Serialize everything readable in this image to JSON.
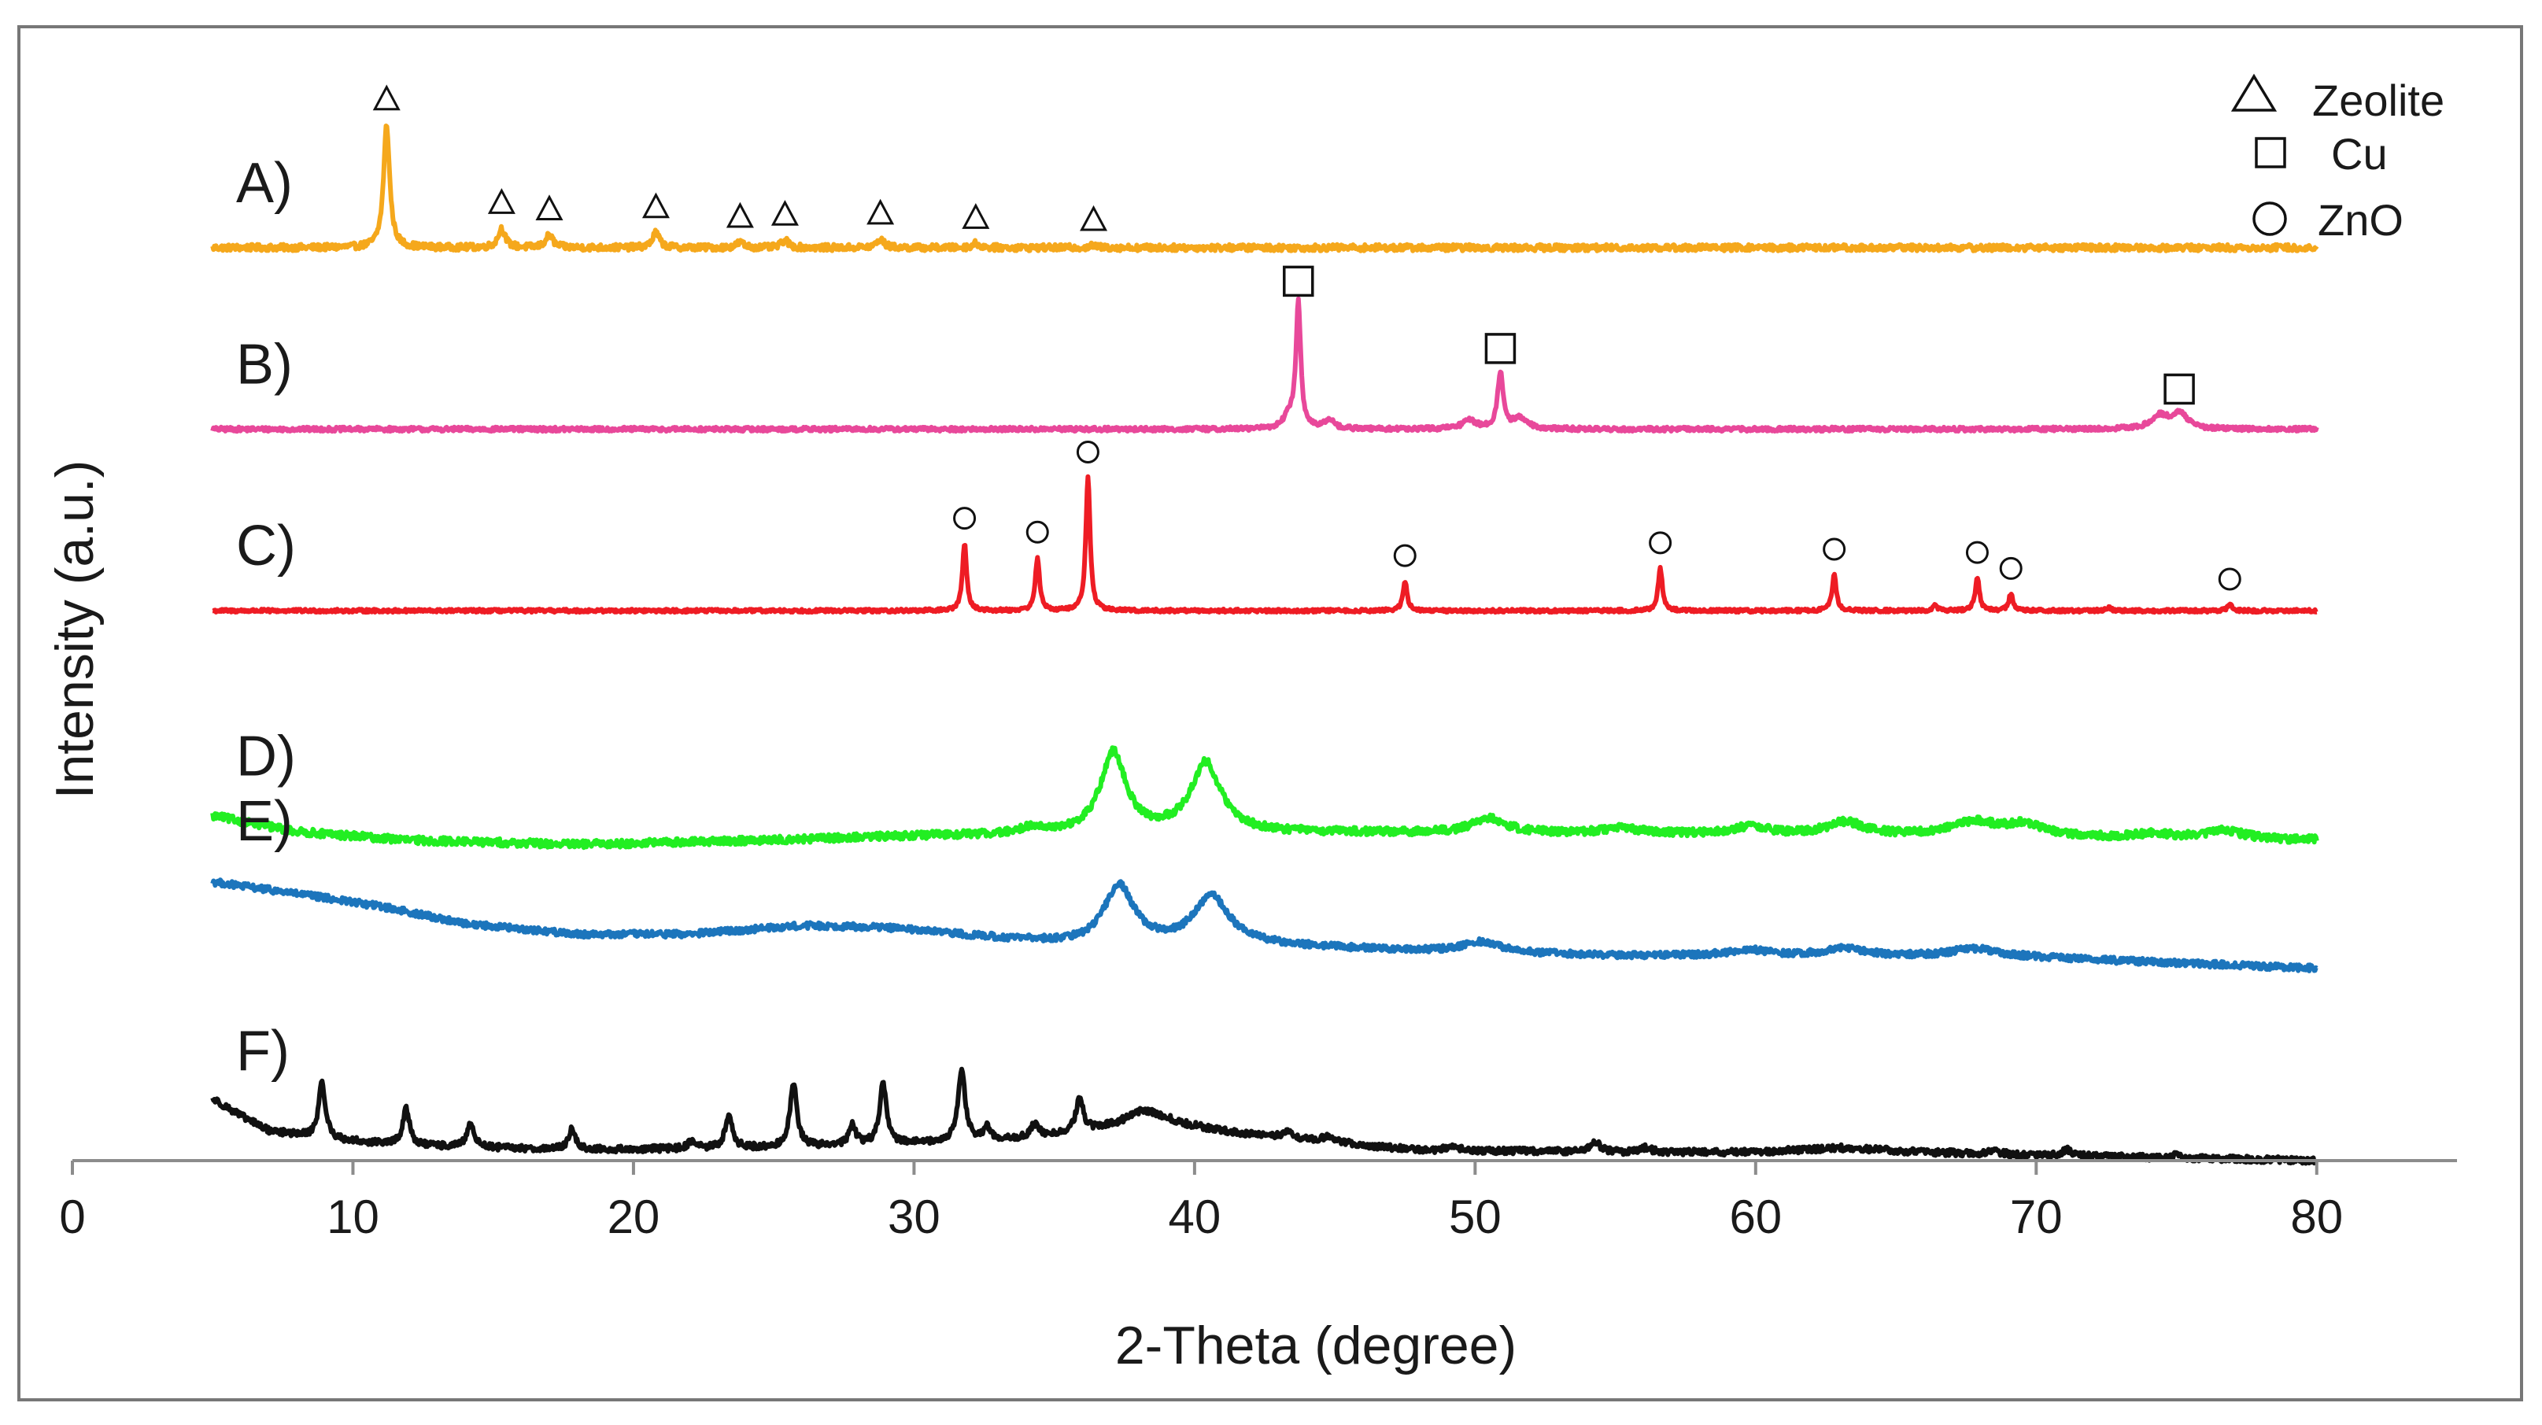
{
  "chart_data": {
    "type": "line",
    "title": "",
    "xlabel": "2-Theta (degree)",
    "ylabel": "Intensity (a.u.)",
    "xlim": [
      0,
      85
    ],
    "xticks": [
      0,
      10,
      20,
      30,
      40,
      50,
      60,
      70,
      80
    ],
    "xtick_labels": [
      "0",
      "10",
      "20",
      "30",
      "40",
      "50",
      "60",
      "70",
      "80"
    ],
    "yticks": "none (arbitrary units)",
    "grid": false,
    "x_range_measured": [
      5,
      80
    ],
    "legend": [
      {
        "marker": "triangle",
        "label": "Zeolite"
      },
      {
        "marker": "square",
        "label": "Cu"
      },
      {
        "marker": "circle",
        "label": "ZnO"
      }
    ],
    "legend_position": "top-right",
    "series": [
      {
        "name": "A)",
        "color": "#F5A81C",
        "offset": 0.855,
        "noise": 0.003,
        "background": [],
        "peaks": [
          {
            "x": 11.2,
            "h": 0.115,
            "w": 0.13,
            "marker": "triangle"
          },
          {
            "x": 15.3,
            "h": 0.018,
            "w": 0.15,
            "marker": "triangle"
          },
          {
            "x": 17.0,
            "h": 0.012,
            "w": 0.15,
            "marker": "triangle"
          },
          {
            "x": 20.8,
            "h": 0.014,
            "w": 0.15,
            "marker": "triangle"
          },
          {
            "x": 23.8,
            "h": 0.005,
            "w": 0.15,
            "marker": "triangle"
          },
          {
            "x": 25.4,
            "h": 0.007,
            "w": 0.15,
            "marker": "triangle"
          },
          {
            "x": 28.8,
            "h": 0.008,
            "w": 0.15,
            "marker": "triangle"
          },
          {
            "x": 32.2,
            "h": 0.004,
            "w": 0.15,
            "marker": "triangle"
          },
          {
            "x": 36.4,
            "h": 0.002,
            "w": 0.15,
            "marker": "triangle"
          }
        ]
      },
      {
        "name": "B)",
        "color": "#E8489A",
        "offset": 0.685,
        "noise": 0.002,
        "background": [],
        "peaks": [
          {
            "x": 43.4,
            "h": 0.012,
            "w": 0.25
          },
          {
            "x": 43.7,
            "h": 0.115,
            "w": 0.1,
            "marker": "square"
          },
          {
            "x": 44.8,
            "h": 0.009,
            "w": 0.2
          },
          {
            "x": 49.8,
            "h": 0.008,
            "w": 0.3
          },
          {
            "x": 50.9,
            "h": 0.052,
            "w": 0.12,
            "marker": "square"
          },
          {
            "x": 51.6,
            "h": 0.01,
            "w": 0.3
          },
          {
            "x": 74.4,
            "h": 0.012,
            "w": 0.35
          },
          {
            "x": 75.1,
            "h": 0.014,
            "w": 0.35,
            "marker": "square"
          }
        ]
      },
      {
        "name": "C)",
        "color": "#EE1C24",
        "offset": 0.515,
        "noise": 0.0015,
        "background": [],
        "peaks": [
          {
            "x": 31.8,
            "h": 0.063,
            "w": 0.09,
            "marker": "circle"
          },
          {
            "x": 34.4,
            "h": 0.05,
            "w": 0.09,
            "marker": "circle"
          },
          {
            "x": 36.2,
            "h": 0.125,
            "w": 0.09,
            "marker": "circle"
          },
          {
            "x": 47.5,
            "h": 0.028,
            "w": 0.09,
            "marker": "circle"
          },
          {
            "x": 56.6,
            "h": 0.04,
            "w": 0.09,
            "marker": "circle"
          },
          {
            "x": 62.8,
            "h": 0.034,
            "w": 0.09,
            "marker": "circle"
          },
          {
            "x": 66.4,
            "h": 0.005,
            "w": 0.09
          },
          {
            "x": 67.9,
            "h": 0.031,
            "w": 0.09,
            "marker": "circle"
          },
          {
            "x": 69.1,
            "h": 0.016,
            "w": 0.09,
            "marker": "circle"
          },
          {
            "x": 72.6,
            "h": 0.003,
            "w": 0.09
          },
          {
            "x": 76.9,
            "h": 0.006,
            "w": 0.09,
            "marker": "circle"
          }
        ]
      },
      {
        "name": "D)",
        "color": "#22EE22",
        "offset": 0.3,
        "noise": 0.0035,
        "background": [
          [
            5,
            0.023
          ],
          [
            8,
            0.008
          ],
          [
            12,
            0.0
          ],
          [
            18,
            -0.004
          ],
          [
            25,
            0.0
          ],
          [
            30,
            0.004
          ],
          [
            36,
            0.006
          ],
          [
            45,
            0.007
          ],
          [
            55,
            0.006
          ],
          [
            65,
            0.004
          ],
          [
            80,
            0.0
          ]
        ],
        "peaks": [
          {
            "x": 34.2,
            "h": 0.006,
            "w": 0.4
          },
          {
            "x": 37.1,
            "h": 0.075,
            "w": 0.55
          },
          {
            "x": 40.4,
            "h": 0.065,
            "w": 0.65
          },
          {
            "x": 50.5,
            "h": 0.014,
            "w": 0.7
          },
          {
            "x": 55.2,
            "h": 0.005,
            "w": 0.8
          },
          {
            "x": 59.8,
            "h": 0.007,
            "w": 0.8
          },
          {
            "x": 63.2,
            "h": 0.012,
            "w": 0.8
          },
          {
            "x": 67.8,
            "h": 0.013,
            "w": 1.0
          },
          {
            "x": 69.6,
            "h": 0.011,
            "w": 0.8
          },
          {
            "x": 74.2,
            "h": 0.004,
            "w": 0.8
          },
          {
            "x": 76.7,
            "h": 0.008,
            "w": 0.8
          }
        ]
      },
      {
        "name": "E)",
        "color": "#1C75BC",
        "offset": 0.18,
        "noise": 0.003,
        "background": [
          [
            5,
            0.081
          ],
          [
            8,
            0.07
          ],
          [
            11,
            0.058
          ],
          [
            14,
            0.042
          ],
          [
            18,
            0.032
          ],
          [
            22,
            0.032
          ],
          [
            26,
            0.04
          ],
          [
            29,
            0.038
          ],
          [
            33,
            0.028
          ],
          [
            36,
            0.022
          ],
          [
            42,
            0.022
          ],
          [
            48,
            0.016
          ],
          [
            55,
            0.012
          ],
          [
            62,
            0.012
          ],
          [
            70,
            0.01
          ],
          [
            80,
            0.0
          ]
        ],
        "peaks": [
          {
            "x": 37.3,
            "h": 0.055,
            "w": 0.65
          },
          {
            "x": 40.6,
            "h": 0.045,
            "w": 0.75
          },
          {
            "x": 50.2,
            "h": 0.01,
            "w": 0.8
          },
          {
            "x": 59.8,
            "h": 0.005,
            "w": 0.8
          },
          {
            "x": 63.2,
            "h": 0.007,
            "w": 0.8
          },
          {
            "x": 67.8,
            "h": 0.008,
            "w": 1.0
          }
        ]
      },
      {
        "name": "F)",
        "color": "#111111",
        "offset": 0.0,
        "noise": 0.003,
        "background": [
          [
            5,
            0.058
          ],
          [
            6,
            0.042
          ],
          [
            7,
            0.028
          ],
          [
            9,
            0.02
          ],
          [
            12,
            0.014
          ],
          [
            18,
            0.01
          ],
          [
            25,
            0.012
          ],
          [
            30,
            0.016
          ],
          [
            34,
            0.02
          ],
          [
            37,
            0.03
          ],
          [
            39,
            0.034
          ],
          [
            42,
            0.024
          ],
          [
            45,
            0.016
          ],
          [
            48,
            0.01
          ],
          [
            55,
            0.008
          ],
          [
            60,
            0.008
          ],
          [
            63,
            0.012
          ],
          [
            66,
            0.008
          ],
          [
            70,
            0.005
          ],
          [
            80,
            0.0
          ]
        ],
        "peaks": [
          {
            "x": 8.9,
            "h": 0.052,
            "w": 0.15
          },
          {
            "x": 11.9,
            "h": 0.034,
            "w": 0.15
          },
          {
            "x": 14.2,
            "h": 0.022,
            "w": 0.15
          },
          {
            "x": 17.8,
            "h": 0.019,
            "w": 0.15
          },
          {
            "x": 22.1,
            "h": 0.008,
            "w": 0.15
          },
          {
            "x": 23.4,
            "h": 0.032,
            "w": 0.15
          },
          {
            "x": 25.7,
            "h": 0.06,
            "w": 0.15
          },
          {
            "x": 27.8,
            "h": 0.018,
            "w": 0.15
          },
          {
            "x": 28.9,
            "h": 0.057,
            "w": 0.15
          },
          {
            "x": 31.7,
            "h": 0.067,
            "w": 0.15
          },
          {
            "x": 32.6,
            "h": 0.012,
            "w": 0.15
          },
          {
            "x": 34.3,
            "h": 0.012,
            "w": 0.2
          },
          {
            "x": 35.9,
            "h": 0.032,
            "w": 0.15
          },
          {
            "x": 38.2,
            "h": 0.014,
            "w": 0.8
          },
          {
            "x": 43.3,
            "h": 0.005,
            "w": 0.25
          },
          {
            "x": 44.8,
            "h": 0.005,
            "w": 0.4
          },
          {
            "x": 49.2,
            "h": 0.004,
            "w": 0.2
          },
          {
            "x": 54.3,
            "h": 0.009,
            "w": 0.2
          },
          {
            "x": 56.1,
            "h": 0.004,
            "w": 0.2
          },
          {
            "x": 68.5,
            "h": 0.004,
            "w": 0.2
          },
          {
            "x": 71.1,
            "h": 0.006,
            "w": 0.2
          },
          {
            "x": 75.0,
            "h": 0.003,
            "w": 0.2
          }
        ]
      }
    ]
  }
}
